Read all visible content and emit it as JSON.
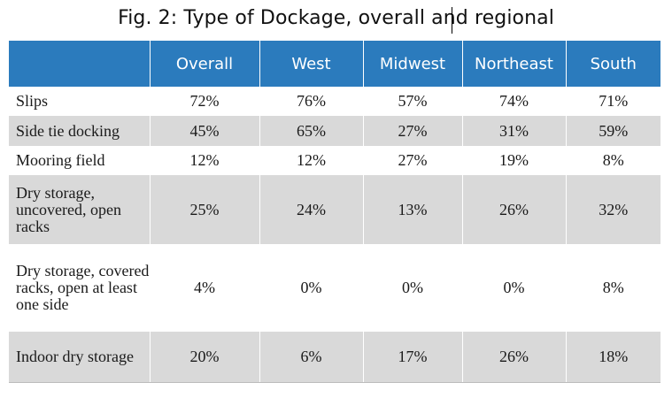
{
  "title": "Fig. 2: Type of Dockage, overall and regional",
  "table": {
    "headers": [
      "",
      "Overall",
      "West",
      "Midwest",
      "Northeast",
      "South"
    ],
    "rows": [
      {
        "label": "Slips",
        "values": [
          "72%",
          "76%",
          "57%",
          "74%",
          "71%"
        ]
      },
      {
        "label": "Side tie docking",
        "values": [
          "45%",
          "65%",
          "27%",
          "31%",
          "59%"
        ]
      },
      {
        "label": "Mooring field",
        "values": [
          "12%",
          "12%",
          "27%",
          "19%",
          "8%"
        ]
      },
      {
        "label": "Dry storage, uncovered, open racks",
        "values": [
          "25%",
          "24%",
          "13%",
          "26%",
          "32%"
        ]
      },
      {
        "label": "Dry storage, covered racks, open at least one side",
        "values": [
          "4%",
          "0%",
          "0%",
          "0%",
          "8%"
        ]
      },
      {
        "label": "Indoor dry storage",
        "values": [
          "20%",
          "6%",
          "17%",
          "26%",
          "18%"
        ]
      }
    ]
  },
  "colors": {
    "header_bg": "#2b7bbd",
    "header_text": "#ffffff",
    "shaded_row": "#d9d9d9"
  }
}
